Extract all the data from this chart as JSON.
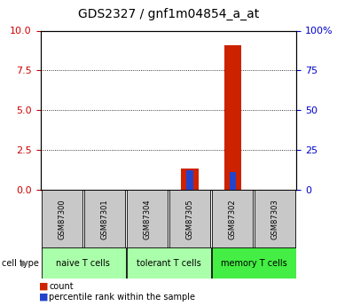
{
  "title": "GDS2327 / gnf1m04854_a_at",
  "samples": [
    "GSM87300",
    "GSM87301",
    "GSM87304",
    "GSM87305",
    "GSM87302",
    "GSM87303"
  ],
  "count_values": [
    0,
    0,
    0,
    1.35,
    9.1,
    0
  ],
  "percentile_values": [
    0,
    0,
    0,
    12.0,
    11.0,
    0
  ],
  "ylim_left": [
    0,
    10
  ],
  "ylim_right": [
    0,
    100
  ],
  "yticks_left": [
    0,
    2.5,
    5,
    7.5,
    10
  ],
  "yticks_right": [
    0,
    25,
    50,
    75,
    100
  ],
  "group_boundaries": [
    {
      "start": 0,
      "end": 2,
      "label": "naive T cells",
      "color": "#aaffaa"
    },
    {
      "start": 2,
      "end": 4,
      "label": "tolerant T cells",
      "color": "#aaffaa"
    },
    {
      "start": 4,
      "end": 6,
      "label": "memory T cells",
      "color": "#44ee44"
    }
  ],
  "count_color": "#cc2200",
  "percentile_color": "#2244cc",
  "sample_box_color": "#c8c8c8",
  "title_fontsize": 10,
  "tick_fontsize": 8,
  "sample_fontsize": 6,
  "cell_fontsize": 7,
  "legend_fontsize": 7,
  "axis_color_left": "#cc0000",
  "axis_color_right": "#0000cc"
}
